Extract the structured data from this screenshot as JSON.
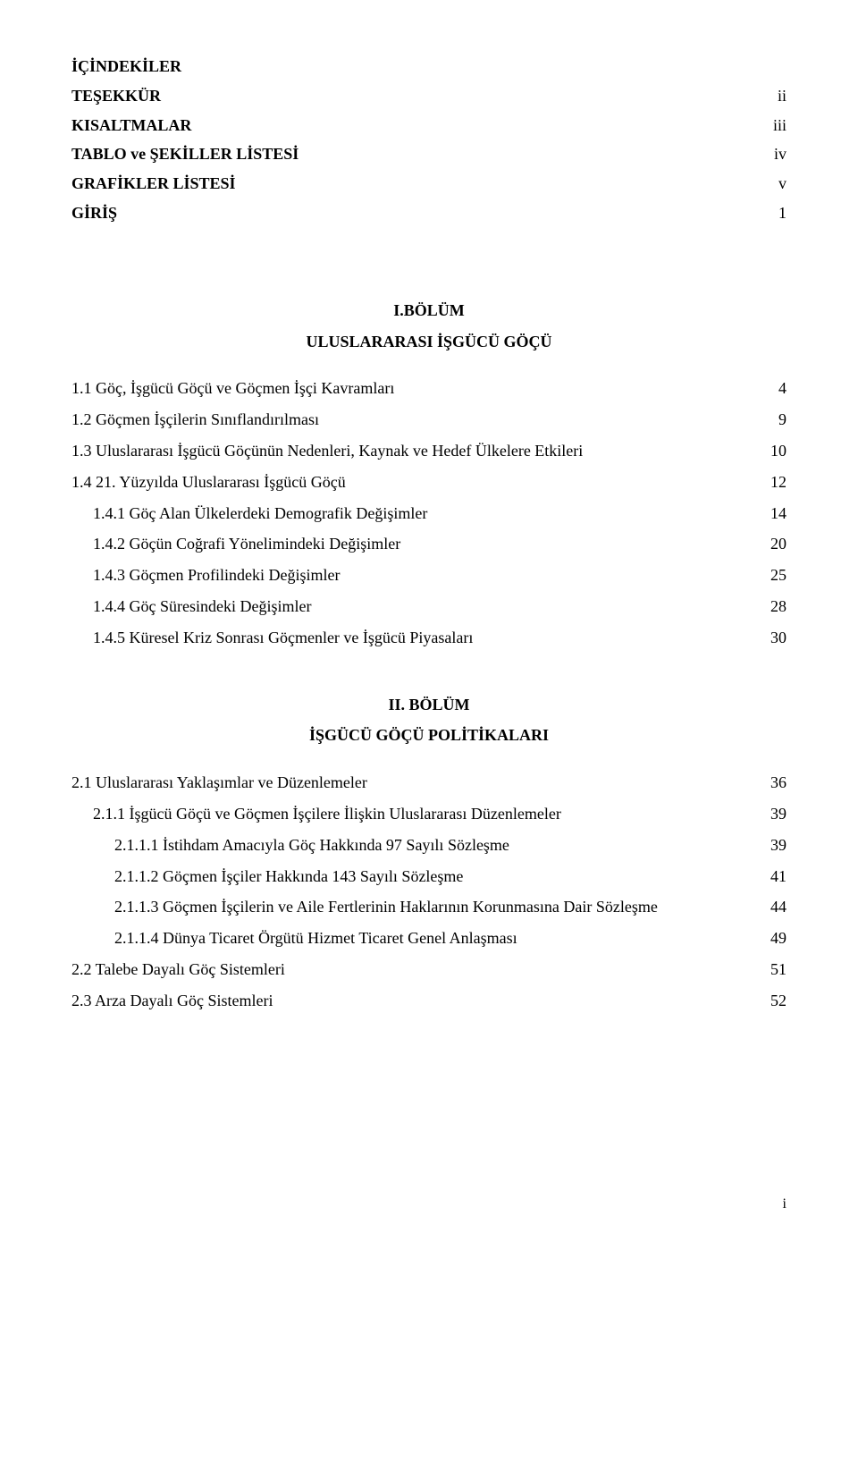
{
  "front_matter": {
    "items": [
      {
        "title": "İÇİNDEKİLER",
        "page": ""
      },
      {
        "title": "TEŞEKKÜR",
        "page": "ii"
      },
      {
        "title": "KISALTMALAR",
        "page": "iii"
      },
      {
        "title": "TABLO ve ŞEKİLLER LİSTESİ",
        "page": "iv"
      },
      {
        "title": "GRAFİKLER LİSTESİ",
        "page": "v"
      },
      {
        "title": "GİRİŞ",
        "page": "1"
      }
    ]
  },
  "chapter1": {
    "heading": "I.BÖLÜM",
    "title": "ULUSLARARASI İŞGÜCÜ GÖÇÜ",
    "entries": [
      {
        "label": "1.1   Göç, İşgücü Göçü ve Göçmen İşçi Kavramları",
        "page": "4",
        "indent": 0
      },
      {
        "label": "1.2   Göçmen İşçilerin Sınıflandırılması",
        "page": "9",
        "indent": 0
      },
      {
        "label": "1.3   Uluslararası İşgücü Göçünün Nedenleri,  Kaynak ve Hedef Ülkelere Etkileri",
        "page": "10",
        "indent": 0
      },
      {
        "label": "1.4   21. Yüzyılda Uluslararası İşgücü Göçü",
        "page": "12",
        "indent": 0
      },
      {
        "label": "1.4.1   Göç Alan Ülkelerdeki Demografik Değişimler",
        "page": "14",
        "indent": 1
      },
      {
        "label": "1.4.2   Göçün Coğrafi Yönelimindeki Değişimler",
        "page": "20",
        "indent": 1
      },
      {
        "label": "1.4.3   Göçmen Profilindeki Değişimler",
        "page": "25",
        "indent": 1
      },
      {
        "label": "1.4.4   Göç Süresindeki Değişimler",
        "page": "28",
        "indent": 1
      },
      {
        "label": "1.4.5   Küresel Kriz Sonrası Göçmenler ve İşgücü Piyasaları",
        "page": "30",
        "indent": 1
      }
    ]
  },
  "chapter2": {
    "heading": "II. BÖLÜM",
    "title": "İŞGÜCÜ GÖÇÜ POLİTİKALARI",
    "entries": [
      {
        "label": "2.1   Uluslararası Yaklaşımlar ve Düzenlemeler",
        "page": "36",
        "indent": 0
      },
      {
        "label": "2.1.1   İşgücü Göçü ve Göçmen İşçilere İlişkin Uluslararası Düzenlemeler",
        "page": "39",
        "indent": 1
      },
      {
        "label": "2.1.1.1   İstihdam Amacıyla Göç Hakkında 97 Sayılı Sözleşme",
        "page": "39",
        "indent": 2
      },
      {
        "label": "2.1.1.2   Göçmen İşçiler Hakkında 143 Sayılı Sözleşme",
        "page": "41",
        "indent": 2
      },
      {
        "label": "2.1.1.3   Göçmen İşçilerin ve Aile Fertlerinin Haklarının Korunmasına Dair Sözleşme",
        "page": "44",
        "indent": 2
      },
      {
        "label": "2.1.1.4   Dünya Ticaret Örgütü Hizmet Ticaret Genel Anlaşması",
        "page": "49",
        "indent": 2
      },
      {
        "label": "2.2   Talebe Dayalı Göç Sistemleri",
        "page": "51",
        "indent": 0
      },
      {
        "label": "2.3   Arza Dayalı Göç Sistemleri",
        "page": "52",
        "indent": 0
      }
    ]
  },
  "footer": {
    "page_num": "i"
  }
}
